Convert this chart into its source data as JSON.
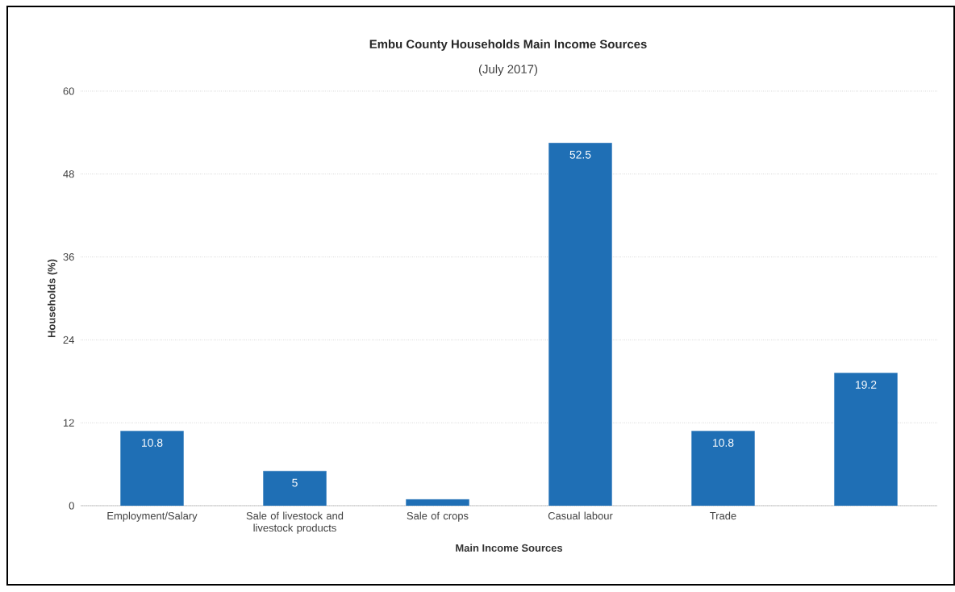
{
  "chart_data": {
    "type": "bar",
    "title": "Embu County Households Main Income Sources",
    "subtitle": "(July 2017)",
    "xlabel": "Main Income Sources",
    "ylabel": "Households (%)",
    "categories": [
      "Employment/Salary",
      "Sale of livestock and livestock products",
      "Sale of crops",
      "Casual labour",
      "Trade",
      null
    ],
    "values": [
      10.8,
      5,
      0.9,
      52.5,
      10.8,
      19.2
    ],
    "value_labels": [
      "10.8",
      "5",
      null,
      "52.5",
      "10.8",
      "19.2"
    ],
    "color": "#1f6fb5",
    "ylim": [
      0,
      60
    ],
    "yticks": [
      0,
      12,
      24,
      36,
      48,
      60
    ],
    "grid": "y"
  }
}
